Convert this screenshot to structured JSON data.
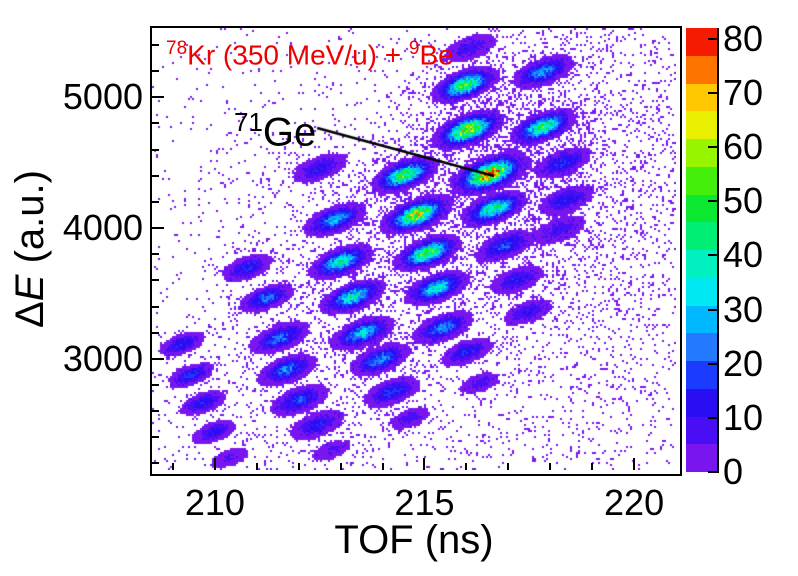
{
  "title": {
    "projectile_mass": "78",
    "projectile": "Kr",
    "energy": " (350 MeV/u) + ",
    "target_mass": "9",
    "target": "Be",
    "color": "#ee0000"
  },
  "annotation": {
    "mass": "71",
    "element": "Ge"
  },
  "axes": {
    "x_label": "TOF (ns)",
    "y_label_delta": "Δ",
    "y_label_symbol": "E",
    "y_label_unit": " (a.u.)"
  },
  "chart_data": {
    "type": "heatmap",
    "title": "78Kr (350 MeV/u) + 9Be",
    "xlabel": "TOF (ns)",
    "ylabel": "Delta-E (a.u.)",
    "x_range": [
      208.5,
      221.0
    ],
    "y_range": [
      2150,
      5530
    ],
    "z_range": [
      0,
      82
    ],
    "x_ticks": [
      210,
      215,
      220
    ],
    "x_minor_ticks": [
      209,
      211,
      212,
      213,
      214,
      216,
      217,
      218,
      219
    ],
    "y_ticks": [
      5000,
      4000,
      3000
    ],
    "y_minor_ticks": [
      5400,
      5200,
      4800,
      4600,
      4400,
      4200,
      3800,
      3600,
      3400,
      3200,
      2800,
      2600,
      2400,
      2200
    ],
    "z_ticks": [
      0,
      10,
      20,
      30,
      40,
      50,
      60,
      70,
      80
    ],
    "grid": false,
    "legend_position": "right-colorbar",
    "palette": [
      "#7916f0",
      "#4a0ef5",
      "#2a0df2",
      "#1b3cff",
      "#2379ff",
      "#00b8ff",
      "#00e9f2",
      "#00f0c0",
      "#00ee74",
      "#0ae930",
      "#45ef0c",
      "#97f500",
      "#e8ef00",
      "#ffc800",
      "#ff7300",
      "#f51b00"
    ],
    "level_step": 5.1,
    "peaks_format": [
      "tof_ns",
      "deltaE_au",
      "peak_counts",
      "size_factor"
    ],
    "peaks": [
      [
        215.97,
        5094,
        50,
        1.0
      ],
      [
        217.83,
        5194,
        26,
        1.0
      ],
      [
        216.04,
        4750,
        62,
        1.05
      ],
      [
        217.83,
        4773,
        46,
        1.0
      ],
      [
        214.53,
        4406,
        52,
        1.0
      ],
      [
        216.56,
        4414,
        74,
        1.12
      ],
      [
        218.3,
        4498,
        15,
        1.0
      ],
      [
        212.87,
        4062,
        28,
        1.0
      ],
      [
        214.82,
        4100,
        60,
        1.05
      ],
      [
        216.66,
        4146,
        42,
        1.0
      ],
      [
        218.4,
        4215,
        13,
        1.0
      ],
      [
        213.01,
        3740,
        38,
        1.0
      ],
      [
        215.08,
        3809,
        52,
        1.0
      ],
      [
        216.92,
        3863,
        18,
        1.0
      ],
      [
        210.77,
        3695,
        15,
        0.9
      ],
      [
        211.24,
        3465,
        22,
        0.9
      ],
      [
        213.29,
        3473,
        38,
        1.0
      ],
      [
        215.3,
        3542,
        36,
        1.0
      ],
      [
        217.21,
        3603,
        12,
        1.0
      ],
      [
        209.22,
        3113,
        16,
        0.8
      ],
      [
        211.55,
        3159,
        22,
        1.0
      ],
      [
        213.53,
        3197,
        32,
        1.0
      ],
      [
        215.44,
        3236,
        24,
        1.0
      ],
      [
        217.47,
        3358,
        11,
        0.9
      ],
      [
        209.43,
        2876,
        17,
        0.8
      ],
      [
        211.72,
        2915,
        22,
        1.0
      ],
      [
        213.94,
        2991,
        24,
        1.0
      ],
      [
        216.01,
        3052,
        15,
        0.9
      ],
      [
        209.72,
        2662,
        15,
        0.8
      ],
      [
        212.03,
        2685,
        18,
        1.0
      ],
      [
        214.22,
        2746,
        16,
        1.0
      ],
      [
        216.32,
        2815,
        8,
        0.8
      ],
      [
        209.98,
        2440,
        13,
        0.8
      ],
      [
        212.44,
        2494,
        13,
        1.0
      ],
      [
        214.65,
        2547,
        8,
        0.8
      ],
      [
        210.36,
        2241,
        6,
        0.8
      ],
      [
        212.79,
        2302,
        6,
        0.8
      ],
      [
        218.23,
        3985,
        9,
        1.0
      ],
      [
        212.51,
        4459,
        12,
        1.0
      ],
      [
        216.09,
        5377,
        9,
        1.0
      ]
    ],
    "scatter_clouds_format": [
      "tof_ns",
      "deltaE_au",
      "sigma_ns",
      "sigma_au",
      "weight"
    ],
    "scatter_clouds": [
      [
        218.1,
        4710,
        2.6,
        730,
        2.0
      ],
      [
        219.4,
        3450,
        1.7,
        840,
        1.0
      ],
      [
        214.9,
        2340,
        3.6,
        215,
        0.8
      ],
      [
        210.6,
        4215,
        1.4,
        610,
        0.4
      ],
      [
        215.5,
        3600,
        3.5,
        1100,
        0.5
      ]
    ],
    "noise": {
      "base": 0.005,
      "halo_gain": 0.018,
      "speckle_max": 4.2,
      "seed": 123457
    },
    "annotation_line": {
      "from": [
        212.44,
        4765
      ],
      "to": [
        216.66,
        4398
      ]
    },
    "annotated_peak": {
      "label": "71Ge",
      "tof": 216.56,
      "deltaE": 4414
    }
  }
}
